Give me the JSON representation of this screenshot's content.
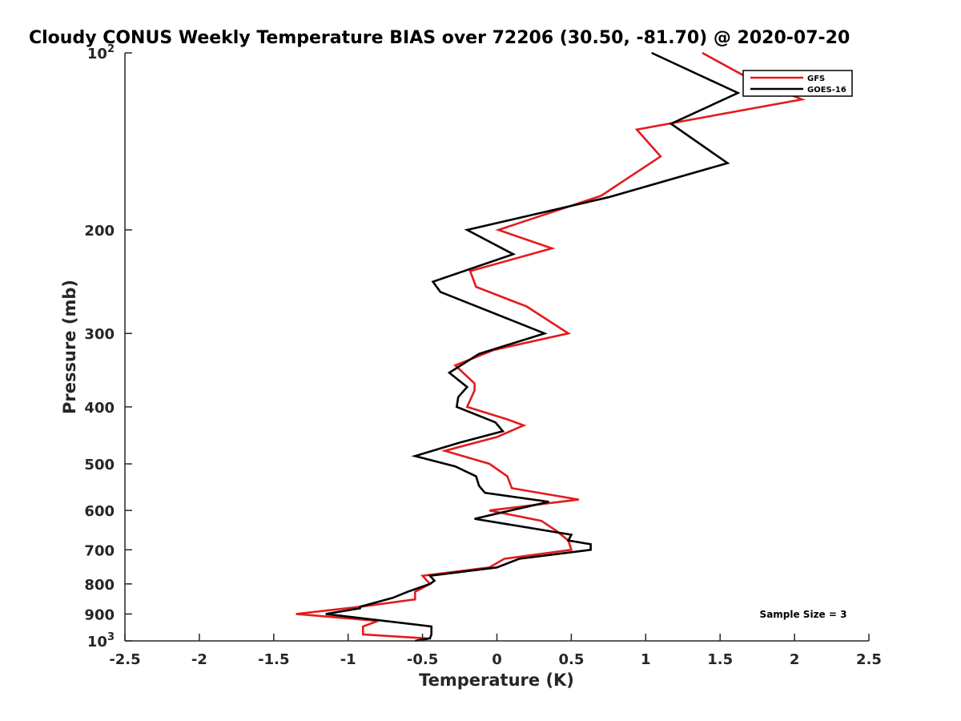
{
  "chart_data": {
    "type": "line",
    "title": "Cloudy CONUS Weekly Temperature BIAS over 72206 (30.50, -81.70) @ 2020-07-20",
    "xlabel": "Temperature (K)",
    "ylabel": "Pressure (mb)",
    "xlim": [
      -2.5,
      2.5
    ],
    "ylim": [
      100,
      1000
    ],
    "y_scale": "log",
    "y_direction": "reversed",
    "x_ticks": [
      -2.5,
      -2,
      -1.5,
      -1,
      -0.5,
      0,
      0.5,
      1,
      1.5,
      2,
      2.5
    ],
    "x_tick_labels": [
      "-2.5",
      "-2",
      "-1.5",
      "-1",
      "-0.5",
      "0",
      "0.5",
      "1",
      "1.5",
      "2",
      "2.5"
    ],
    "y_ticks": [
      200,
      300,
      400,
      500,
      600,
      700,
      800,
      900
    ],
    "y_tick_labels": [
      "200",
      "300",
      "400",
      "500",
      "600",
      "700",
      "800",
      "900"
    ],
    "y_top_label": {
      "base": "10",
      "exp": "2"
    },
    "y_bottom_label": {
      "base": "10",
      "exp": "3"
    },
    "legend_position": "top-right",
    "series": [
      {
        "name": "GFS",
        "color": "#e41a1c",
        "points": [
          {
            "t": -0.5,
            "p": 1000
          },
          {
            "t": -0.48,
            "p": 990
          },
          {
            "t": -0.9,
            "p": 975
          },
          {
            "t": -0.9,
            "p": 945
          },
          {
            "t": -0.8,
            "p": 925
          },
          {
            "t": -1.35,
            "p": 900
          },
          {
            "t": -0.92,
            "p": 875
          },
          {
            "t": -0.55,
            "p": 850
          },
          {
            "t": -0.55,
            "p": 825
          },
          {
            "t": -0.45,
            "p": 800
          },
          {
            "t": -0.5,
            "p": 775
          },
          {
            "t": -0.05,
            "p": 750
          },
          {
            "t": 0.05,
            "p": 725
          },
          {
            "t": 0.5,
            "p": 700
          },
          {
            "t": 0.48,
            "p": 675
          },
          {
            "t": 0.4,
            "p": 650
          },
          {
            "t": 0.3,
            "p": 625
          },
          {
            "t": -0.05,
            "p": 600
          },
          {
            "t": 0.55,
            "p": 575
          },
          {
            "t": 0.1,
            "p": 550
          },
          {
            "t": 0.07,
            "p": 525
          },
          {
            "t": -0.05,
            "p": 500
          },
          {
            "t": -0.35,
            "p": 475
          },
          {
            "t": 0.0,
            "p": 450
          },
          {
            "t": 0.18,
            "p": 430
          },
          {
            "t": 0.07,
            "p": 420
          },
          {
            "t": -0.2,
            "p": 400
          },
          {
            "t": -0.15,
            "p": 375
          },
          {
            "t": -0.15,
            "p": 365
          },
          {
            "t": -0.28,
            "p": 340
          },
          {
            "t": -0.02,
            "p": 320
          },
          {
            "t": 0.48,
            "p": 300
          },
          {
            "t": 0.2,
            "p": 270
          },
          {
            "t": -0.14,
            "p": 250
          },
          {
            "t": -0.18,
            "p": 235
          },
          {
            "t": 0.37,
            "p": 215
          },
          {
            "t": 0.01,
            "p": 200
          },
          {
            "t": 0.7,
            "p": 175
          },
          {
            "t": 1.1,
            "p": 150
          },
          {
            "t": 0.94,
            "p": 135
          },
          {
            "t": 2.05,
            "p": 120
          },
          {
            "t": 1.68,
            "p": 110
          },
          {
            "t": 1.38,
            "p": 100
          }
        ]
      },
      {
        "name": "GOES-16",
        "color": "#000000",
        "points": [
          {
            "t": -0.55,
            "p": 1000
          },
          {
            "t": -0.45,
            "p": 990
          },
          {
            "t": -0.44,
            "p": 975
          },
          {
            "t": -0.44,
            "p": 945
          },
          {
            "t": -1.15,
            "p": 900
          },
          {
            "t": -0.92,
            "p": 880
          },
          {
            "t": -0.92,
            "p": 875
          },
          {
            "t": -0.7,
            "p": 845
          },
          {
            "t": -0.6,
            "p": 825
          },
          {
            "t": -0.45,
            "p": 800
          },
          {
            "t": -0.42,
            "p": 790
          },
          {
            "t": -0.45,
            "p": 775
          },
          {
            "t": 0.0,
            "p": 750
          },
          {
            "t": 0.15,
            "p": 725
          },
          {
            "t": 0.63,
            "p": 700
          },
          {
            "t": 0.63,
            "p": 685
          },
          {
            "t": 0.48,
            "p": 675
          },
          {
            "t": 0.5,
            "p": 660
          },
          {
            "t": -0.15,
            "p": 620
          },
          {
            "t": 0.03,
            "p": 605
          },
          {
            "t": 0.35,
            "p": 580
          },
          {
            "t": -0.08,
            "p": 560
          },
          {
            "t": -0.12,
            "p": 545
          },
          {
            "t": -0.14,
            "p": 525
          },
          {
            "t": -0.28,
            "p": 505
          },
          {
            "t": -0.55,
            "p": 485
          },
          {
            "t": -0.25,
            "p": 460
          },
          {
            "t": 0.04,
            "p": 440
          },
          {
            "t": -0.01,
            "p": 425
          },
          {
            "t": -0.27,
            "p": 400
          },
          {
            "t": -0.26,
            "p": 385
          },
          {
            "t": -0.2,
            "p": 370
          },
          {
            "t": -0.32,
            "p": 350
          },
          {
            "t": -0.12,
            "p": 325
          },
          {
            "t": 0.32,
            "p": 300
          },
          {
            "t": -0.38,
            "p": 255
          },
          {
            "t": -0.43,
            "p": 245
          },
          {
            "t": 0.11,
            "p": 220
          },
          {
            "t": -0.2,
            "p": 200
          },
          {
            "t": 0.75,
            "p": 176
          },
          {
            "t": 1.55,
            "p": 154
          },
          {
            "t": 1.17,
            "p": 132
          },
          {
            "t": 1.62,
            "p": 117
          },
          {
            "t": 1.04,
            "p": 100
          }
        ]
      }
    ],
    "annotation": "Sample Size = 3"
  }
}
